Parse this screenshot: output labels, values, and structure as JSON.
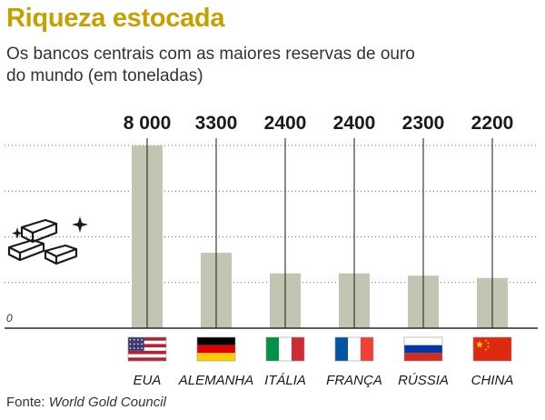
{
  "title": "Riqueza estocada",
  "subtitle": "Os bancos centrais com as maiores reservas de ouro do mundo (em toneladas)",
  "source_prefix": "Fonte: ",
  "source_name": "World Gold Council",
  "icon": "gold-bars-icon",
  "colors": {
    "title": "#c7a000",
    "bar": "#c3c5b3",
    "line": "#2a2a2a"
  },
  "chart_data": {
    "type": "bar",
    "categories": [
      "EUA",
      "ALEMANHA",
      "ITÁLIA",
      "FRANÇA",
      "RÚSSIA",
      "CHINA"
    ],
    "values": [
      8000,
      3300,
      2400,
      2400,
      2300,
      2200
    ],
    "value_labels": [
      "8 000",
      "3300",
      "2400",
      "2400",
      "2300",
      "2200"
    ],
    "flags": [
      "usa-flag-icon",
      "germany-flag-icon",
      "italy-flag-icon",
      "france-flag-icon",
      "russia-flag-icon",
      "china-flag-icon"
    ],
    "zero_label": "0",
    "title": "Riqueza estocada",
    "ylim": [
      0,
      8000
    ],
    "grid": true
  }
}
